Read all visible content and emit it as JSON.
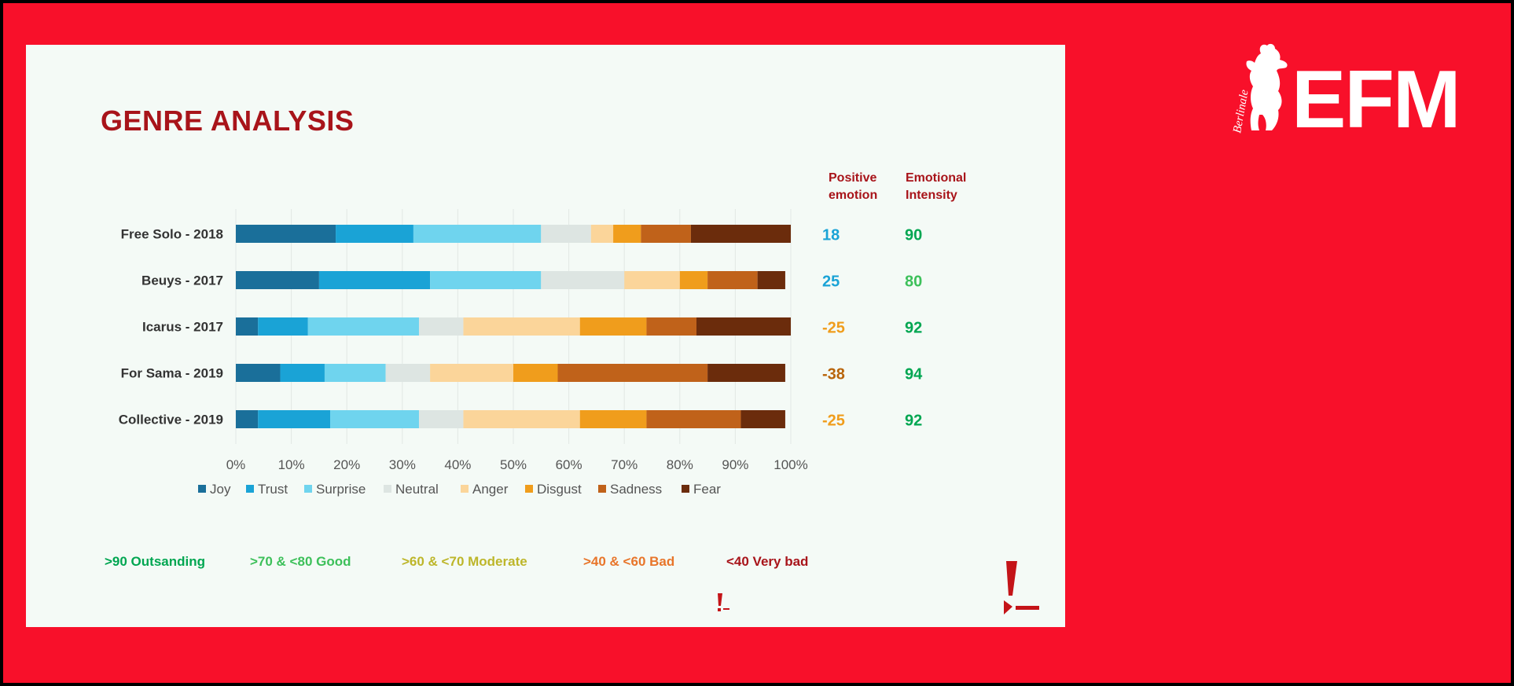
{
  "brand": {
    "logo_text": "EFM",
    "script_text": "Berlinale"
  },
  "slide": {
    "title": "GENRE ANALYSIS"
  },
  "chart_data": {
    "type": "bar",
    "stacked": true,
    "orientation": "horizontal",
    "categories": [
      "Free Solo - 2018",
      "Beuys - 2017",
      "Icarus - 2017",
      "For Sama - 2019",
      "Collective - 2019"
    ],
    "series": [
      {
        "name": "Joy",
        "color": "#1a6f9a",
        "values": [
          18,
          15,
          4,
          8,
          4
        ]
      },
      {
        "name": "Trust",
        "color": "#1aa3d6",
        "values": [
          14,
          20,
          9,
          8,
          13
        ]
      },
      {
        "name": "Surprise",
        "color": "#6fd4ee",
        "values": [
          23,
          20,
          20,
          11,
          16
        ]
      },
      {
        "name": "Neutral",
        "color": "#dde5e2",
        "values": [
          9,
          15,
          8,
          8,
          8
        ]
      },
      {
        "name": "Anger",
        "color": "#fbd59a",
        "values": [
          4,
          10,
          21,
          15,
          21
        ]
      },
      {
        "name": "Disgust",
        "color": "#f09d1c",
        "values": [
          5,
          5,
          12,
          8,
          12
        ]
      },
      {
        "name": "Sadness",
        "color": "#c0621a",
        "values": [
          9,
          9,
          9,
          27,
          17
        ]
      },
      {
        "name": "Fear",
        "color": "#6b2c0c",
        "values": [
          18,
          5,
          17,
          14,
          8
        ]
      }
    ],
    "xticks": [
      "0%",
      "10%",
      "20%",
      "30%",
      "40%",
      "50%",
      "60%",
      "70%",
      "80%",
      "90%",
      "100%"
    ],
    "xlim": [
      0,
      100
    ],
    "grid": true,
    "legend_position": "bottom",
    "columns": [
      {
        "header": [
          "Positive",
          "emotion"
        ],
        "color": "#a8141a",
        "values": [
          "18",
          "25",
          "-25",
          "-38",
          "-25"
        ],
        "value_colors": [
          "#1aa3d6",
          "#1aa3d6",
          "#f09d1c",
          "#b8640a",
          "#f09d1c"
        ]
      },
      {
        "header": [
          "Emotional",
          "Intensity"
        ],
        "color": "#a8141a",
        "values": [
          "90",
          "80",
          "92",
          "94",
          "92"
        ],
        "value_colors": [
          "#00a651",
          "#3dc05a",
          "#00a651",
          "#00a651",
          "#00a651"
        ]
      }
    ],
    "scale_legend": [
      {
        "label": ">90 Outsanding",
        "color": "#00a651"
      },
      {
        "label": ">70 & <80 Good",
        "color": "#3dc05a"
      },
      {
        "label": ">60 & <70 Moderate",
        "color": "#bdb62a"
      },
      {
        "label": ">40 & <60 Bad",
        "color": "#e8752a"
      },
      {
        "label": "<40 Very bad",
        "color": "#a8141a"
      }
    ]
  }
}
